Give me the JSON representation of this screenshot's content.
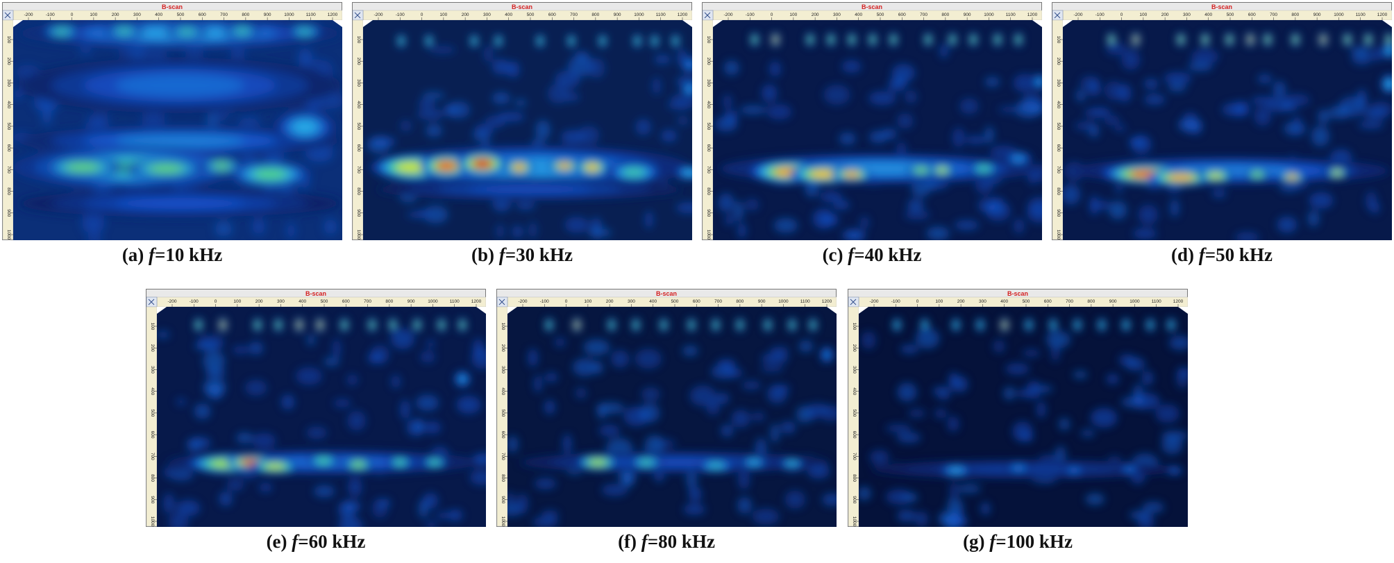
{
  "scan_title": "B-scan",
  "x_ticks": [
    "-200",
    "-100",
    "0",
    "100",
    "200",
    "300",
    "400",
    "500",
    "600",
    "700",
    "800",
    "900",
    "1000",
    "1100",
    "1200"
  ],
  "y_ticks": [
    "100",
    "200",
    "300",
    "400",
    "500",
    "600",
    "700",
    "800",
    "900",
    "1000"
  ],
  "colors": {
    "window_bg": "#061735",
    "title_red": "#d42020",
    "ruler_bg": "#f3eed2"
  },
  "panels": [
    {
      "id": "a",
      "caption_prefix": "(a) ",
      "var": "f",
      "caption_suffix": "=10 kHz"
    },
    {
      "id": "b",
      "caption_prefix": "(b) ",
      "var": "f",
      "caption_suffix": "=30 kHz"
    },
    {
      "id": "c",
      "caption_prefix": "(c) ",
      "var": "f",
      "caption_suffix": "=40 kHz"
    },
    {
      "id": "d",
      "caption_prefix": "(d) ",
      "var": "f",
      "caption_suffix": "=50 kHz"
    },
    {
      "id": "e",
      "caption_prefix": "(e) ",
      "var": "f",
      "caption_suffix": "=60 kHz"
    },
    {
      "id": "f",
      "caption_prefix": "(f) ",
      "var": "f",
      "caption_suffix": "=80 kHz"
    },
    {
      "id": "g",
      "caption_prefix": "(g) ",
      "var": "f",
      "caption_suffix": "=100 kHz"
    }
  ]
}
